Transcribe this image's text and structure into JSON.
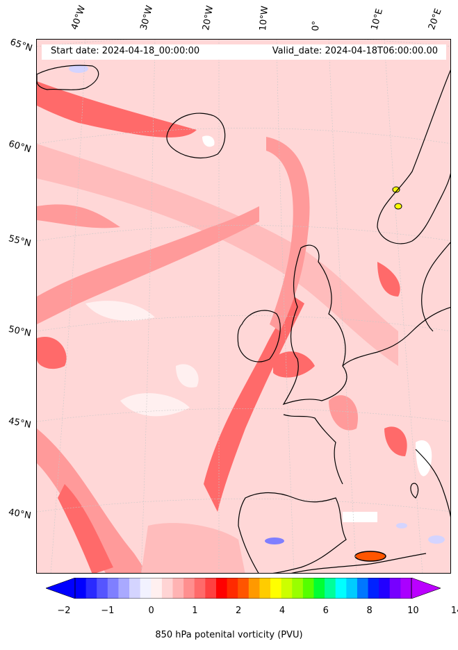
{
  "header": {
    "start_date": "Start date: 2024-04-18_00:00:00",
    "valid_date": "Valid_date: 2024-04-18T06:00:00.00"
  },
  "longitude_labels": [
    "40°W",
    "30°W",
    "20°W",
    "10°W",
    "0°",
    "10°E",
    "20°E"
  ],
  "latitude_labels": [
    "65°N",
    "60°N",
    "55°N",
    "50°N",
    "45°N",
    "40°N"
  ],
  "colorbar": {
    "label": "850 hPa potenital vorticity (PVU)",
    "tick_labels": [
      "−2",
      "−1",
      "0",
      "1",
      "2",
      "4",
      "6",
      "8",
      "10",
      "14"
    ],
    "colors": [
      "#0000ff",
      "#2a2aff",
      "#5555ff",
      "#7f7fff",
      "#a9a9ff",
      "#d4d4ff",
      "#f2f2ff",
      "#fff0f0",
      "#ffd4d4",
      "#ffb3b3",
      "#ff8f8f",
      "#ff6a6a",
      "#ff4040",
      "#ff0000",
      "#ff2a00",
      "#ff5500",
      "#ff9900",
      "#ffcc00",
      "#ffff00",
      "#ccff00",
      "#99ff00",
      "#55ff00",
      "#00ff33",
      "#00ff99",
      "#00ffff",
      "#00ccff",
      "#0077ff",
      "#0022ff",
      "#2200ff",
      "#7700ff",
      "#aa00ff"
    ],
    "underflow_color": "#0000ff",
    "overflow_color": "#bb00ff"
  },
  "map_colors": {
    "background": "#ffd7d7",
    "band_strong": "#ff6a6a",
    "band_medium": "#ff9a9a",
    "band_light": "#ffbcbc",
    "low": "#fff0f0",
    "coast": "#000000",
    "grid": "#c8c8c8"
  }
}
